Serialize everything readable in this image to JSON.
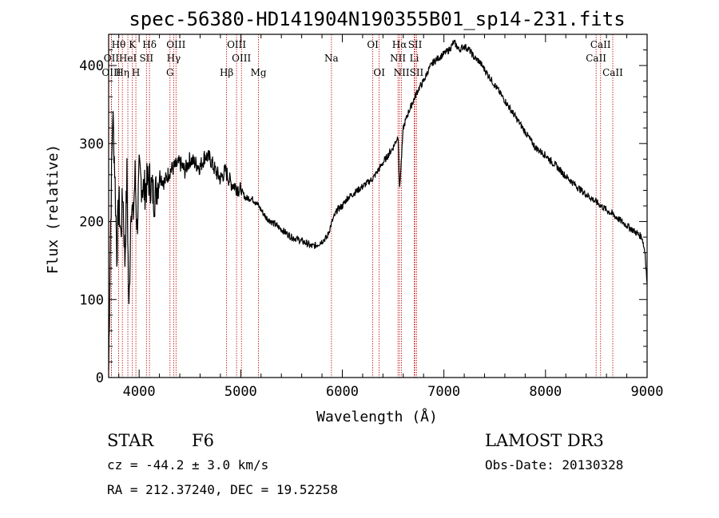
{
  "chart_data": {
    "type": "line",
    "title": "spec-56380-HD141904N190355B01_sp14-231.fits",
    "xlabel": "Wavelength (Å)",
    "ylabel": "Flux (relative)",
    "xlim": [
      3700,
      9000
    ],
    "ylim": [
      0,
      440
    ],
    "x_ticks": [
      4000,
      5000,
      6000,
      7000,
      8000,
      9000
    ],
    "y_ticks": [
      0,
      100,
      200,
      300,
      400
    ],
    "grid": false,
    "series": [
      {
        "name": "flux",
        "x": [
          3700,
          3720,
          3740,
          3760,
          3780,
          3800,
          3820,
          3840,
          3860,
          3880,
          3900,
          3920,
          3940,
          3960,
          3980,
          4000,
          4050,
          4100,
          4150,
          4200,
          4250,
          4300,
          4350,
          4400,
          4450,
          4500,
          4550,
          4600,
          4650,
          4700,
          4750,
          4800,
          4850,
          4900,
          4950,
          5000,
          5050,
          5100,
          5150,
          5200,
          5250,
          5300,
          5350,
          5400,
          5450,
          5500,
          5550,
          5600,
          5650,
          5700,
          5750,
          5800,
          5850,
          5900,
          5950,
          6000,
          6050,
          6100,
          6150,
          6200,
          6250,
          6300,
          6350,
          6400,
          6450,
          6500,
          6550,
          6563,
          6600,
          6650,
          6700,
          6750,
          6800,
          6850,
          6900,
          6950,
          7000,
          7050,
          7100,
          7150,
          7200,
          7250,
          7300,
          7350,
          7400,
          7450,
          7500,
          7550,
          7600,
          7650,
          7700,
          7750,
          7800,
          7850,
          7900,
          7950,
          8000,
          8050,
          8100,
          8150,
          8200,
          8250,
          8300,
          8350,
          8400,
          8450,
          8500,
          8550,
          8600,
          8650,
          8700,
          8750,
          8800,
          8850,
          8900,
          8950,
          8980,
          9000
        ],
        "values": [
          10,
          200,
          340,
          270,
          160,
          230,
          180,
          240,
          150,
          260,
          80,
          230,
          200,
          260,
          190,
          260,
          240,
          255,
          230,
          260,
          250,
          265,
          270,
          275,
          265,
          280,
          275,
          270,
          285,
          280,
          265,
          255,
          265,
          250,
          245,
          240,
          230,
          230,
          225,
          215,
          205,
          200,
          195,
          190,
          185,
          180,
          178,
          175,
          172,
          168,
          170,
          175,
          180,
          200,
          215,
          220,
          230,
          235,
          240,
          245,
          250,
          255,
          265,
          275,
          285,
          295,
          310,
          240,
          320,
          340,
          355,
          370,
          380,
          395,
          405,
          410,
          415,
          420,
          430,
          420,
          425,
          420,
          410,
          405,
          395,
          385,
          375,
          365,
          355,
          345,
          335,
          325,
          315,
          305,
          295,
          290,
          285,
          278,
          272,
          265,
          258,
          252,
          246,
          240,
          235,
          230,
          225,
          220,
          215,
          210,
          205,
          200,
          195,
          190,
          185,
          180,
          160,
          120
        ]
      }
    ],
    "lines_top": [
      {
        "label": "Hθ",
        "x": 3798
      },
      {
        "label": "K",
        "x": 3934
      },
      {
        "label": "Hδ",
        "x": 4102
      },
      {
        "label": "OIII",
        "x": 4363
      },
      {
        "label": "OIII",
        "x": 4959
      },
      {
        "label": "OI",
        "x": 6300
      },
      {
        "label": "Hα",
        "x": 6563
      },
      {
        "label": "SII",
        "x": 6716
      },
      {
        "label": "CaII",
        "x": 8542
      }
    ],
    "lines_mid": [
      {
        "label": "OII",
        "x": 3727
      },
      {
        "label": "HeI",
        "x": 3889
      },
      {
        "label": "SII",
        "x": 4072
      },
      {
        "label": "Hγ",
        "x": 4340
      },
      {
        "label": "OIII",
        "x": 5007
      },
      {
        "label": "Na",
        "x": 5893
      },
      {
        "label": "NII",
        "x": 6548
      },
      {
        "label": "Li",
        "x": 6708
      },
      {
        "label": "CaII",
        "x": 8498
      }
    ],
    "lines_low": [
      {
        "label": "OIII",
        "x": 3727
      },
      {
        "label": "Hη",
        "x": 3835
      },
      {
        "label": "H",
        "x": 3968
      },
      {
        "label": "G",
        "x": 4304
      },
      {
        "label": "Hβ",
        "x": 4861
      },
      {
        "label": "Mg",
        "x": 5175
      },
      {
        "label": "OI",
        "x": 6363
      },
      {
        "label": "NII",
        "x": 6583
      },
      {
        "label": "SII",
        "x": 6731
      },
      {
        "label": "CaII",
        "x": 8662
      }
    ]
  },
  "info": {
    "class_label": "STAR",
    "subclass": "F6",
    "survey": "LAMOST DR3",
    "redshift": "cz = -44.2 ± 3.0 km/s",
    "obs_date": "Obs-Date: 20130328",
    "coords": "RA = 212.37240, DEC =  19.52258"
  },
  "colors": {
    "spectrum": "#000000",
    "line_markers": "#c00000",
    "axes": "#000000"
  }
}
